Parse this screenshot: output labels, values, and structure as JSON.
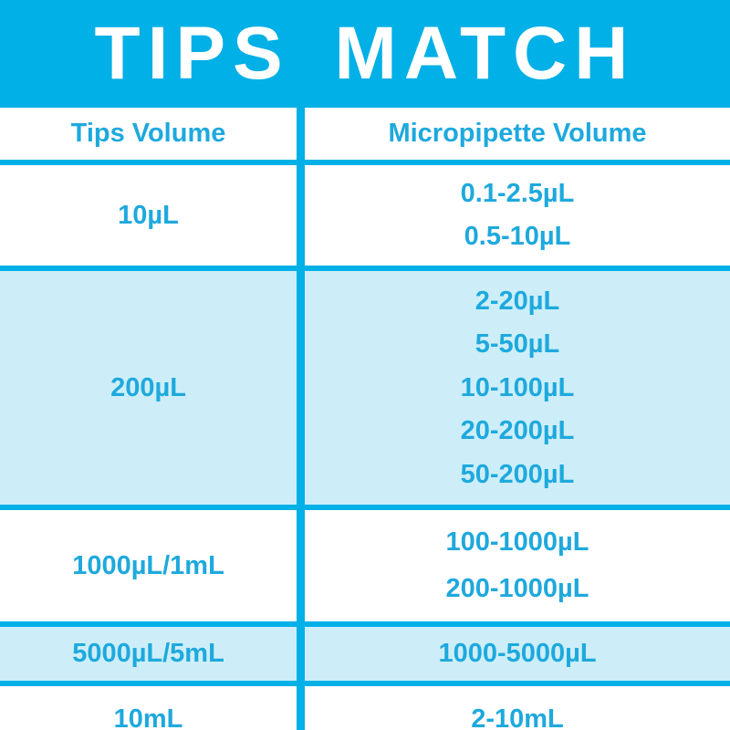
{
  "title": "TIPS MATCH",
  "colors": {
    "banner_cyan": "#00b0e6",
    "border_cyan": "#00b0e6",
    "text_cyan": "#1ea9dd",
    "row_highlight": "#cdeef9",
    "row_plain": "#ffffff",
    "title_text": "#ffffff"
  },
  "table": {
    "headers": [
      "Tips Volume",
      "Micropipette Volume"
    ],
    "rows": [
      {
        "tips": "10µL",
        "micropipette": [
          "0.1-2.5µL",
          "0.5-10µL"
        ]
      },
      {
        "tips": "200µL",
        "micropipette": [
          "2-20µL",
          "5-50µL",
          "10-100µL",
          "20-200µL",
          "50-200µL"
        ]
      },
      {
        "tips": "1000µL/1mL",
        "micropipette": [
          "100-1000µL",
          "200-1000µL"
        ]
      },
      {
        "tips": "5000µL/5mL",
        "micropipette": [
          "1000-5000µL"
        ]
      },
      {
        "tips": "10mL",
        "micropipette": [
          "2-10mL"
        ]
      }
    ]
  }
}
